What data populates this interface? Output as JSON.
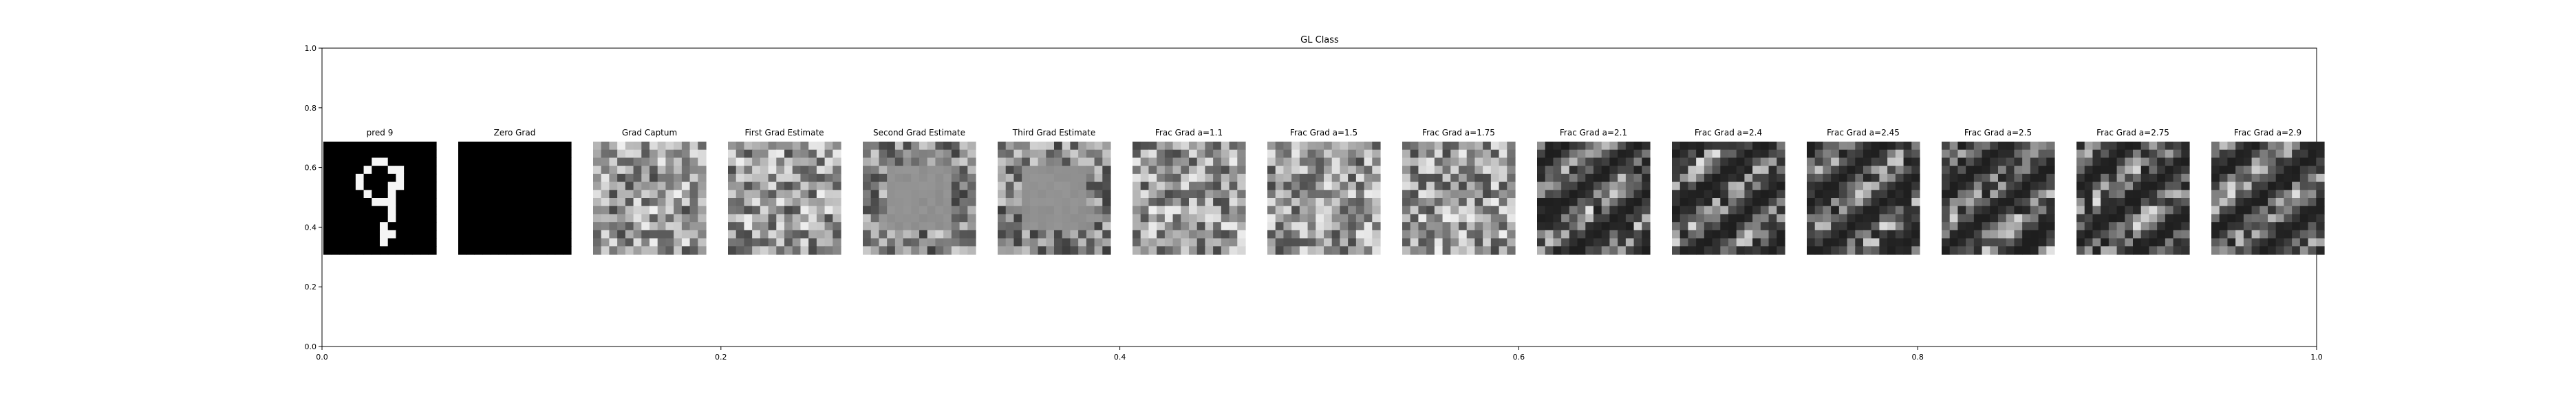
{
  "chart_data": {
    "type": "image-grid",
    "title": "GL Class",
    "xlim": [
      0.0,
      1.0
    ],
    "ylim": [
      0.0,
      1.0
    ],
    "xticks": [
      "0.0",
      "0.2",
      "0.4",
      "0.6",
      "0.8",
      "1.0"
    ],
    "yticks": [
      "0.0",
      "0.2",
      "0.4",
      "0.6",
      "0.8",
      "1.0"
    ],
    "grid": false,
    "panels": [
      {
        "title": "pred 9",
        "kind": "digit"
      },
      {
        "title": "Zero Grad",
        "kind": "zero"
      },
      {
        "title": "Grad Captum",
        "kind": "noise"
      },
      {
        "title": "First Grad Estimate",
        "kind": "noise"
      },
      {
        "title": "Second Grad Estimate",
        "kind": "flat"
      },
      {
        "title": "Third Grad Estimate",
        "kind": "flat"
      },
      {
        "title": "Frac Grad a=1.1",
        "kind": "noise"
      },
      {
        "title": "Frac Grad a=1.5",
        "kind": "noise"
      },
      {
        "title": "Frac Grad a=1.75",
        "kind": "noise"
      },
      {
        "title": "Frac Grad a=2.1",
        "kind": "dark"
      },
      {
        "title": "Frac Grad a=2.4",
        "kind": "dark"
      },
      {
        "title": "Frac Grad a=2.45",
        "kind": "dark"
      },
      {
        "title": "Frac Grad a=2.5",
        "kind": "dark"
      },
      {
        "title": "Frac Grad a=2.75",
        "kind": "dark"
      },
      {
        "title": "Frac Grad a=2.9",
        "kind": "dark"
      }
    ]
  }
}
